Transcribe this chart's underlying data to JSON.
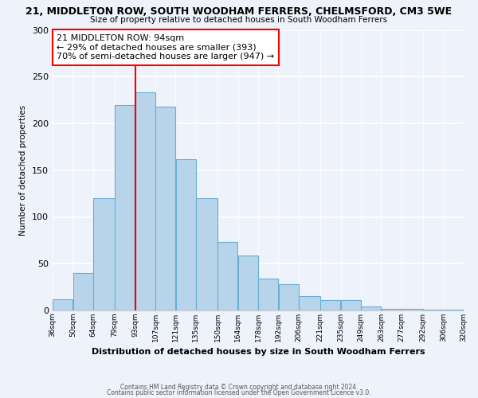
{
  "title": "21, MIDDLETON ROW, SOUTH WOODHAM FERRERS, CHELMSFORD, CM3 5WE",
  "subtitle": "Size of property relative to detached houses in South Woodham Ferrers",
  "xlabel": "Distribution of detached houses by size in South Woodham Ferrers",
  "ylabel": "Number of detached properties",
  "bin_edges": [
    36,
    50,
    64,
    79,
    93,
    107,
    121,
    135,
    150,
    164,
    178,
    192,
    206,
    221,
    235,
    249,
    263,
    277,
    292,
    306,
    320
  ],
  "bin_labels": [
    "36sqm",
    "50sqm",
    "64sqm",
    "79sqm",
    "93sqm",
    "107sqm",
    "121sqm",
    "135sqm",
    "150sqm",
    "164sqm",
    "178sqm",
    "192sqm",
    "206sqm",
    "221sqm",
    "235sqm",
    "249sqm",
    "263sqm",
    "277sqm",
    "292sqm",
    "306sqm",
    "320sqm"
  ],
  "counts": [
    12,
    40,
    120,
    220,
    233,
    218,
    162,
    120,
    73,
    59,
    34,
    28,
    15,
    11,
    11,
    4,
    2,
    2,
    1,
    1
  ],
  "bar_color": "#b8d4ea",
  "bar_edge_color": "#6aaed6",
  "property_line_x": 93,
  "property_line_color": "red",
  "annotation_text": "21 MIDDLETON ROW: 94sqm\n← 29% of detached houses are smaller (393)\n70% of semi-detached houses are larger (947) →",
  "annotation_box_color": "white",
  "annotation_box_edge": "red",
  "ylim": [
    0,
    300
  ],
  "yticks": [
    0,
    50,
    100,
    150,
    200,
    250,
    300
  ],
  "footer1": "Contains HM Land Registry data © Crown copyright and database right 2024.",
  "footer2": "Contains public sector information licensed under the Open Government Licence v3.0.",
  "bg_color": "#eef2fa",
  "plot_bg_color": "#eef2fa"
}
